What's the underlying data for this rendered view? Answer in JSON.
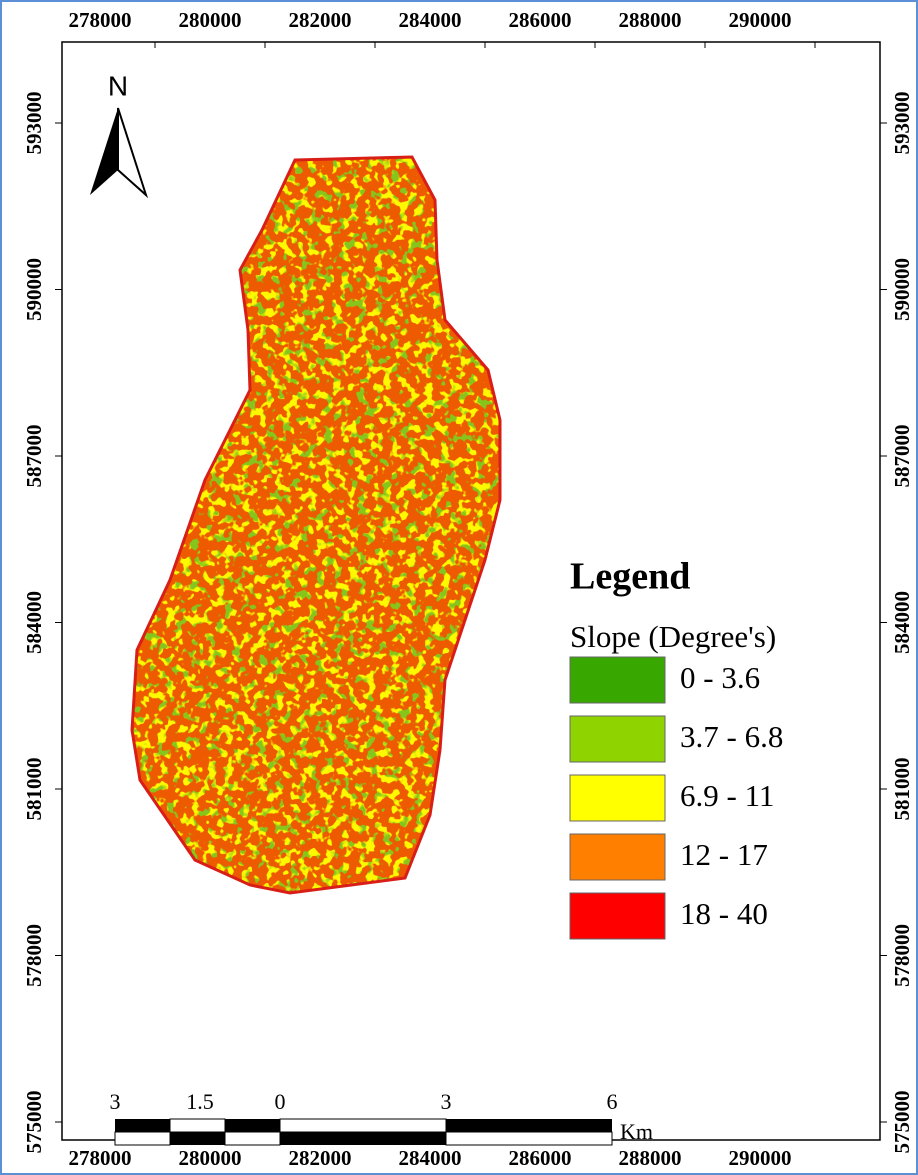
{
  "map": {
    "easting_labels": [
      278000,
      280000,
      282000,
      284000,
      286000,
      288000,
      290000
    ],
    "northing_labels": [
      593000,
      590000,
      587000,
      584000,
      581000,
      578000,
      575000
    ],
    "north": "N",
    "legend": {
      "title": "Legend",
      "subtitle": "Slope (Degree's)",
      "items": [
        {
          "label": "0 - 3.6",
          "color": "#38a800"
        },
        {
          "label": "3.7 - 6.8",
          "color": "#8fd400"
        },
        {
          "label": "6.9 - 11",
          "color": "#ffff00"
        },
        {
          "label": "12 - 17",
          "color": "#ff8000"
        },
        {
          "label": "18 - 40",
          "color": "#ff0000"
        }
      ]
    },
    "scale_bar": {
      "labels": [
        3,
        1.5,
        0,
        3,
        6
      ],
      "unit": "Km"
    }
  }
}
